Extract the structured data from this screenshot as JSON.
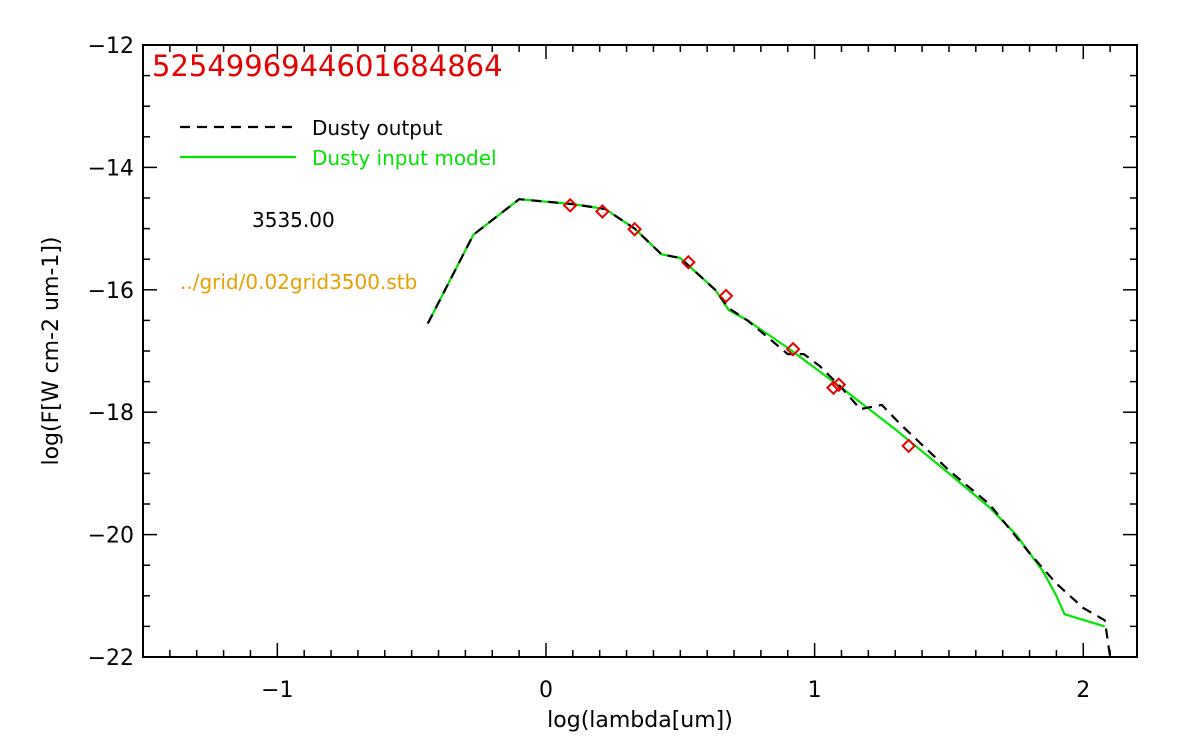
{
  "chart_data": {
    "type": "line",
    "id_label": "5254996944601684864",
    "xlabel": "log(lambda[um])",
    "ylabel": "log(F[W cm-2 um-1])",
    "xlim": [
      -1.5,
      2.2
    ],
    "ylim": [
      -22,
      -12
    ],
    "x_ticks": [
      -1,
      0,
      1,
      2
    ],
    "x_tick_labels": [
      "−1",
      "0",
      "1",
      "2"
    ],
    "y_ticks": [
      -22,
      -20,
      -18,
      -16,
      -14,
      -12
    ],
    "y_tick_labels": [
      "−22",
      "−20",
      "−18",
      "−16",
      "−14",
      "−12"
    ],
    "annotations": {
      "temperature": "3535.00",
      "grid_file": "../grid/0.02grid3500.stb"
    },
    "legend": {
      "placement": "top-left",
      "entries": [
        {
          "label": "Dusty output",
          "color": "#000000",
          "style": "dashed"
        },
        {
          "label": "Dusty input model",
          "color": "#00e600",
          "style": "solid"
        }
      ]
    },
    "series": [
      {
        "name": "Dusty input model",
        "color": "#00e600",
        "style": "solid",
        "points": [
          [
            -0.44,
            -16.55
          ],
          [
            -0.27,
            -15.1
          ],
          [
            -0.1,
            -14.52
          ],
          [
            0.1,
            -14.6
          ],
          [
            0.22,
            -14.68
          ],
          [
            0.33,
            -15.0
          ],
          [
            0.43,
            -15.42
          ],
          [
            0.5,
            -15.48
          ],
          [
            0.63,
            -16.0
          ],
          [
            0.68,
            -16.33
          ],
          [
            0.75,
            -16.5
          ],
          [
            0.9,
            -16.95
          ],
          [
            1.1,
            -17.6
          ],
          [
            1.3,
            -18.28
          ],
          [
            1.5,
            -19.0
          ],
          [
            1.65,
            -19.55
          ],
          [
            1.75,
            -20.0
          ],
          [
            1.85,
            -20.6
          ],
          [
            1.9,
            -21.0
          ],
          [
            1.93,
            -21.3
          ],
          [
            2.08,
            -21.5
          ]
        ]
      },
      {
        "name": "Dusty output",
        "color": "#000000",
        "style": "dashed",
        "points": [
          [
            -0.44,
            -16.55
          ],
          [
            -0.27,
            -15.1
          ],
          [
            -0.1,
            -14.52
          ],
          [
            0.1,
            -14.6
          ],
          [
            0.22,
            -14.68
          ],
          [
            0.33,
            -15.0
          ],
          [
            0.43,
            -15.42
          ],
          [
            0.5,
            -15.48
          ],
          [
            0.63,
            -16.0
          ],
          [
            0.68,
            -16.3
          ],
          [
            0.75,
            -16.5
          ],
          [
            0.9,
            -17.05
          ],
          [
            0.96,
            -17.05
          ],
          [
            1.02,
            -17.25
          ],
          [
            1.1,
            -17.6
          ],
          [
            1.17,
            -17.95
          ],
          [
            1.25,
            -17.88
          ],
          [
            1.32,
            -18.2
          ],
          [
            1.5,
            -18.95
          ],
          [
            1.65,
            -19.5
          ],
          [
            1.8,
            -20.3
          ],
          [
            1.9,
            -20.8
          ],
          [
            2.0,
            -21.2
          ],
          [
            2.08,
            -21.4
          ],
          [
            2.1,
            -22.0
          ]
        ]
      }
    ],
    "photometry": {
      "name": "Observed photometry",
      "color": "#e60000",
      "marker": "diamond",
      "points": [
        [
          0.09,
          -14.62
        ],
        [
          0.21,
          -14.72
        ],
        [
          0.33,
          -15.01
        ],
        [
          0.53,
          -15.55
        ],
        [
          0.67,
          -16.1
        ],
        [
          0.92,
          -16.97
        ],
        [
          1.07,
          -17.6
        ],
        [
          1.09,
          -17.55
        ],
        [
          1.35,
          -18.55
        ]
      ]
    }
  }
}
